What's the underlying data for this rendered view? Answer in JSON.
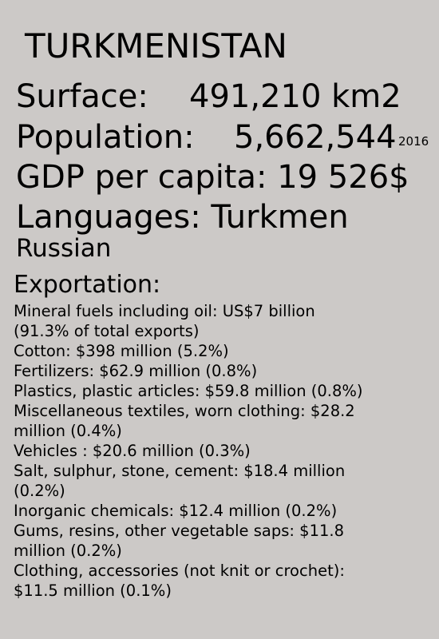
{
  "country": "TURKMENISTAN",
  "surface": {
    "label": "Surface:",
    "value": "491,210 km2"
  },
  "population": {
    "label": "Population:",
    "value": "5,662,544",
    "year": "2016"
  },
  "gdp": {
    "text": "GDP per capita: 19 526$"
  },
  "languages": {
    "primary": "Languages: Turkmen",
    "secondary": "Russian"
  },
  "exportation": {
    "title": "Exportation:",
    "items": [
      {
        "lines": [
          "Mineral fuels including oil: US$7 billion",
          "(91.3% of total exports)"
        ]
      },
      {
        "lines": [
          "Cotton: $398 million (5.2%)"
        ]
      },
      {
        "lines": [
          "Fertilizers: $62.9 million (0.8%)"
        ]
      },
      {
        "lines": [
          "Plastics, plastic articles: $59.8 million (0.8%)"
        ]
      },
      {
        "lines": [
          "Miscellaneous textiles, worn clothing: $28.2",
          "million (0.4%)"
        ]
      },
      {
        "lines": [
          "Vehicles : $20.6 million (0.3%)"
        ]
      },
      {
        "lines": [
          "Salt, sulphur, stone, cement: $18.4 million",
          "(0.2%)"
        ]
      },
      {
        "lines": [
          "Inorganic chemicals: $12.4 million (0.2%)"
        ]
      },
      {
        "lines": [
          "Gums, resins, other vegetable saps: $11.8",
          "million (0.2%)"
        ]
      },
      {
        "lines": [
          "Clothing, accessories (not knit or crochet):",
          "$11.5 million (0.1%)"
        ]
      }
    ]
  }
}
